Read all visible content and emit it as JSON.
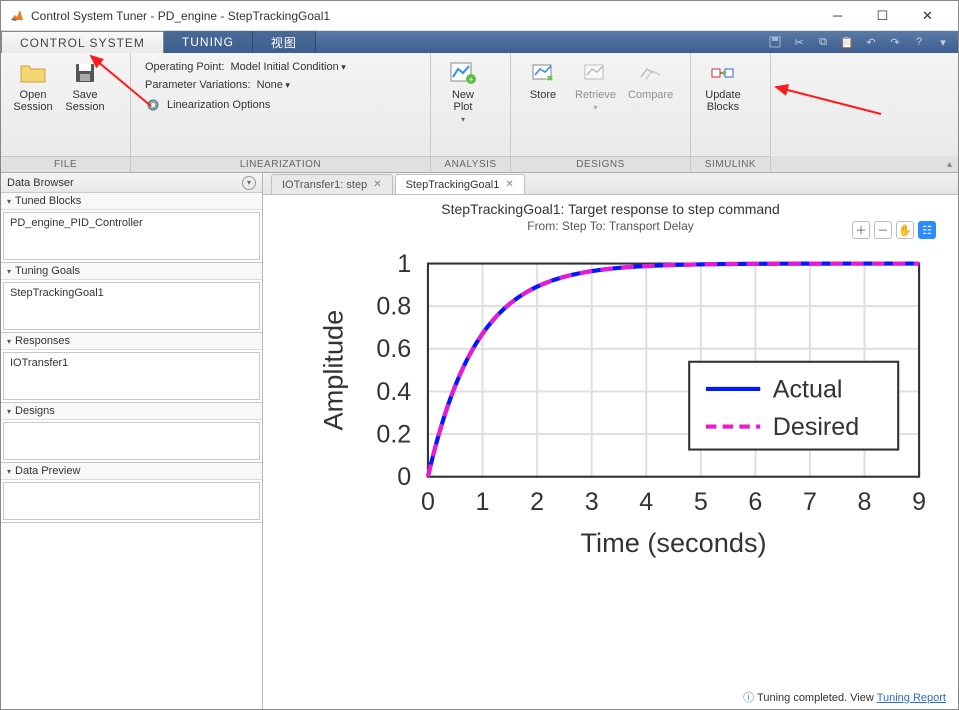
{
  "window": {
    "title": "Control System Tuner - PD_engine - StepTrackingGoal1"
  },
  "tabs": {
    "t1": "CONTROL SYSTEM",
    "t2": "TUNING",
    "t3": "视图"
  },
  "ribbon": {
    "file": {
      "open": "Open\nSession",
      "save": "Save\nSession",
      "label": "FILE"
    },
    "lin": {
      "op_lbl": "Operating Point:",
      "op_val": "Model Initial Condition",
      "pv_lbl": "Parameter Variations:",
      "pv_val": "None",
      "linopt": "Linearization Options",
      "label": "LINEARIZATION"
    },
    "analysis": {
      "newplot": "New\nPlot",
      "label": "ANALYSIS"
    },
    "designs": {
      "store": "Store",
      "retrieve": "Retrieve",
      "compare": "Compare",
      "label": "DESIGNS"
    },
    "simulink": {
      "update": "Update\nBlocks",
      "label": "SIMULINK"
    }
  },
  "browser": {
    "title": "Data Browser",
    "p1": {
      "hdr": "Tuned Blocks",
      "item": "PD_engine_PID_Controller"
    },
    "p2": {
      "hdr": "Tuning Goals",
      "item": "StepTrackingGoal1"
    },
    "p3": {
      "hdr": "Responses",
      "item": "IOTransfer1"
    },
    "p4": {
      "hdr": "Designs",
      "item": ""
    },
    "p5": {
      "hdr": "Data Preview",
      "item": ""
    }
  },
  "doctabs": {
    "t1": "IOTransfer1: step",
    "t2": "StepTrackingGoal1"
  },
  "plot": {
    "title": "StepTrackingGoal1: Target response to step command",
    "subtitle": "From: Step  To: Transport Delay",
    "ylabel": "Amplitude",
    "xlabel": "Time (seconds)",
    "xlim": [
      0,
      9
    ],
    "ylim": [
      0,
      1
    ],
    "xticks": [
      0,
      1,
      2,
      3,
      4,
      5,
      6,
      7,
      8,
      9
    ],
    "yticks": [
      0,
      0.2,
      0.4,
      0.6,
      0.8,
      1
    ],
    "grid_color": "#e0e0e0",
    "axis_color": "#333",
    "bg": "#ffffff",
    "series": [
      {
        "name": "Actual",
        "color": "#0018ff",
        "width": 2,
        "dash": "none"
      },
      {
        "name": "Desired",
        "color": "#e81bd4",
        "width": 2,
        "dash": "6,4"
      }
    ],
    "tau": 0.9,
    "legend": {
      "s1": "Actual",
      "s2": "Desired"
    }
  },
  "status": {
    "msg": "Tuning completed. View ",
    "link": "Tuning Report"
  },
  "annot_color": "#ff1a1a"
}
